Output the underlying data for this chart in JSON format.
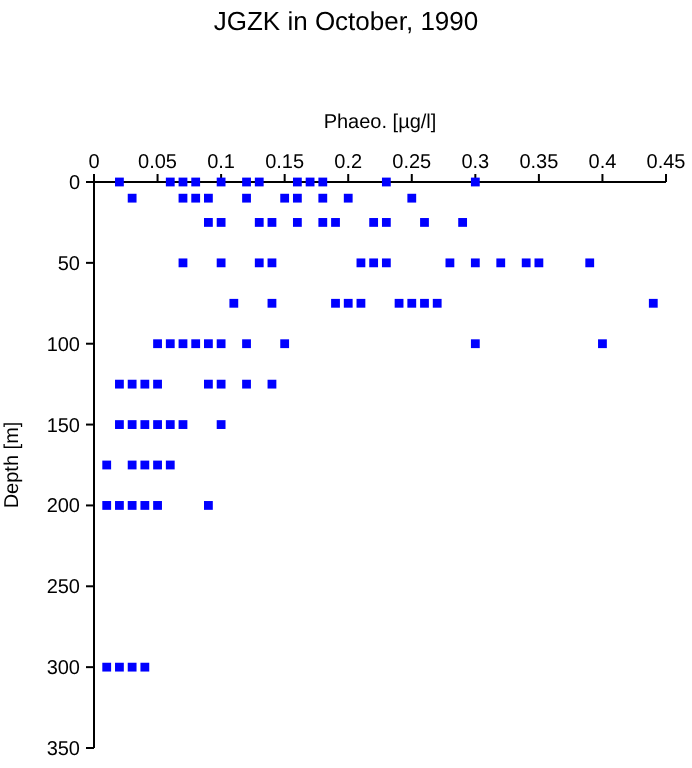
{
  "chart_data": {
    "type": "scatter",
    "title": "JGZK in October, 1990",
    "xlabel": "Phaeo. [µg/l]",
    "ylabel": "Depth [m]",
    "marker": "square",
    "grid": false,
    "xlim": [
      0,
      0.45
    ],
    "xticks": [
      0,
      0.05,
      0.1,
      0.15,
      0.2,
      0.25,
      0.3,
      0.35,
      0.4,
      0.45
    ],
    "ylim": [
      350,
      0
    ],
    "yticks": [
      0,
      50,
      100,
      150,
      200,
      250,
      300,
      350
    ],
    "series": [
      {
        "color": "#0000ff",
        "x": [
          0.02,
          0.06,
          0.07,
          0.08,
          0.1,
          0.12,
          0.13,
          0.16,
          0.17,
          0.18,
          0.23,
          0.3,
          0.03,
          0.07,
          0.08,
          0.09,
          0.12,
          0.15,
          0.16,
          0.18,
          0.2,
          0.25,
          0.09,
          0.1,
          0.13,
          0.14,
          0.16,
          0.18,
          0.19,
          0.22,
          0.23,
          0.26,
          0.29,
          0.07,
          0.1,
          0.13,
          0.14,
          0.21,
          0.22,
          0.23,
          0.28,
          0.3,
          0.32,
          0.34,
          0.35,
          0.39,
          0.11,
          0.14,
          0.19,
          0.2,
          0.21,
          0.24,
          0.25,
          0.26,
          0.27,
          0.44,
          0.05,
          0.06,
          0.07,
          0.08,
          0.09,
          0.1,
          0.12,
          0.15,
          0.3,
          0.4,
          0.02,
          0.03,
          0.04,
          0.05,
          0.09,
          0.1,
          0.12,
          0.14,
          0.02,
          0.03,
          0.04,
          0.05,
          0.06,
          0.07,
          0.1,
          0.01,
          0.03,
          0.04,
          0.05,
          0.06,
          0.01,
          0.02,
          0.03,
          0.04,
          0.05,
          0.09,
          0.01,
          0.02,
          0.03,
          0.04
        ],
        "values": [
          0,
          0,
          0,
          0,
          0,
          0,
          0,
          0,
          0,
          0,
          0,
          0,
          10,
          10,
          10,
          10,
          10,
          10,
          10,
          10,
          10,
          10,
          25,
          25,
          25,
          25,
          25,
          25,
          25,
          25,
          25,
          25,
          25,
          50,
          50,
          50,
          50,
          50,
          50,
          50,
          50,
          50,
          50,
          50,
          50,
          50,
          75,
          75,
          75,
          75,
          75,
          75,
          75,
          75,
          75,
          75,
          100,
          100,
          100,
          100,
          100,
          100,
          100,
          100,
          100,
          100,
          125,
          125,
          125,
          125,
          125,
          125,
          125,
          125,
          150,
          150,
          150,
          150,
          150,
          150,
          150,
          175,
          175,
          175,
          175,
          175,
          200,
          200,
          200,
          200,
          200,
          200,
          300,
          300,
          300,
          300
        ]
      }
    ]
  }
}
